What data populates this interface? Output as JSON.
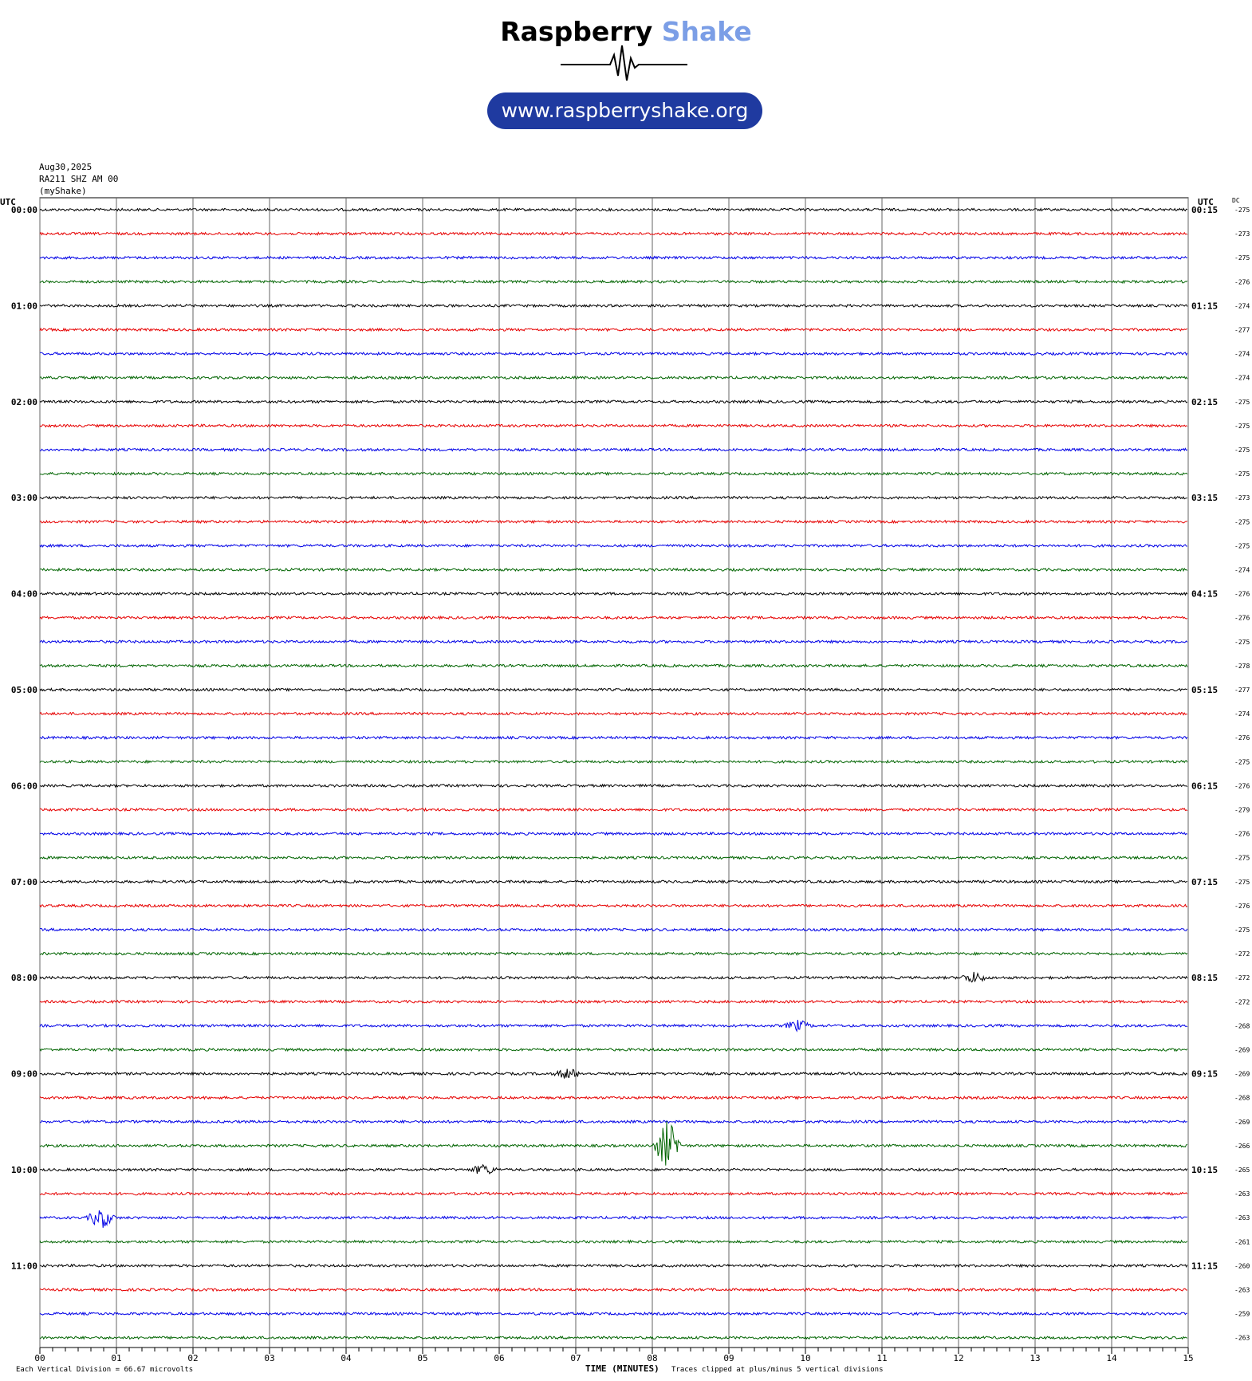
{
  "brand": {
    "name_part1": "Raspberry",
    "name_part2": "Shake",
    "url": "www.raspberryshake.org"
  },
  "header": {
    "date": "Aug30,2025",
    "station": "RA211 SHZ AM 00",
    "network": "(myShake)"
  },
  "labels": {
    "utc_left": "UTC",
    "utc_right": "UTC",
    "dc": "DC"
  },
  "footer": {
    "division": "Each Vertical Division =   66.67 microvolts",
    "axis_title": "TIME (MINUTES)",
    "clip_note": "Traces clipped at plus/minus 5 vertical divisions"
  },
  "chart_data": {
    "type": "line",
    "title": "",
    "xlabel": "TIME (MINUTES)",
    "xlim": [
      0,
      15
    ],
    "x_ticks": [
      "00",
      "01",
      "02",
      "03",
      "04",
      "05",
      "06",
      "07",
      "08",
      "09",
      "10",
      "11",
      "12",
      "13",
      "14",
      "15"
    ],
    "row_colors": [
      "#000000",
      "#e60000",
      "#0000e6",
      "#006400"
    ],
    "hour_labels_left": [
      "00:00",
      "01:00",
      "02:00",
      "03:00",
      "04:00",
      "05:00",
      "06:00",
      "07:00",
      "08:00",
      "09:00",
      "10:00",
      "11:00"
    ],
    "hour_labels_right": [
      "00:15",
      "01:15",
      "02:15",
      "03:15",
      "04:15",
      "05:15",
      "06:15",
      "07:15",
      "08:15",
      "09:15",
      "10:15",
      "11:15"
    ],
    "dc_offsets": [
      -275,
      -273,
      -275,
      -276,
      -274,
      -277,
      -274,
      -274,
      -275,
      -275,
      -275,
      -275,
      -273,
      -275,
      -275,
      -274,
      -276,
      -276,
      -275,
      -278,
      -277,
      -274,
      -276,
      -275,
      -276,
      -279,
      -276,
      -275,
      -275,
      -276,
      -275,
      -272,
      -272,
      -272,
      -268,
      -269,
      -269,
      -268,
      -269,
      -266,
      -265,
      -263,
      -263,
      -261,
      -260,
      -263,
      -259,
      -263
    ],
    "events": [
      {
        "row": 39,
        "minute": 8.2,
        "amplitude": 5
      },
      {
        "row": 42,
        "minute": 0.8,
        "amplitude": 2
      },
      {
        "row": 40,
        "minute": 5.8,
        "amplitude": 1
      },
      {
        "row": 32,
        "minute": 12.2,
        "amplitude": 1
      },
      {
        "row": 34,
        "minute": 9.9,
        "amplitude": 1
      },
      {
        "row": 36,
        "minute": 6.9,
        "amplitude": 1
      }
    ]
  }
}
